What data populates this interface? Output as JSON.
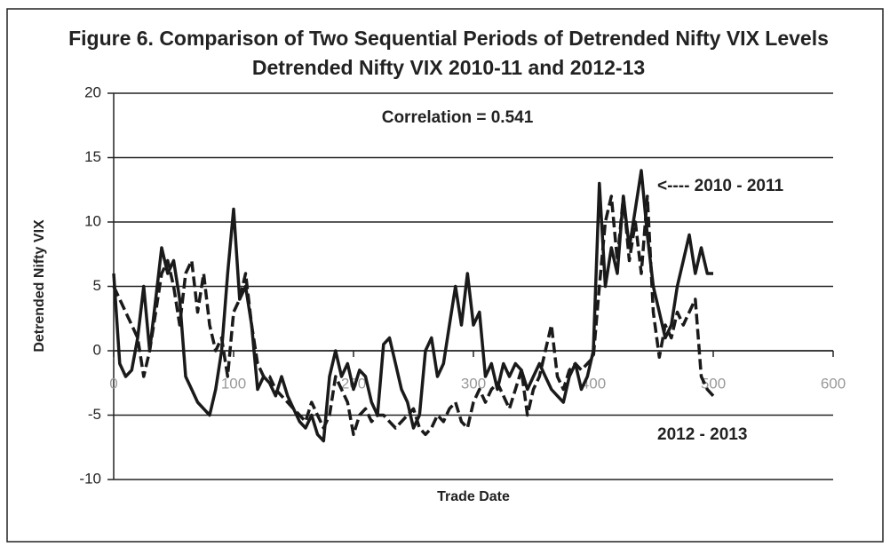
{
  "chart_data": {
    "type": "line",
    "title": "Figure 6. Comparison of Two Sequential Periods of Detrended Nifty VIX Levels",
    "subtitle": "Detrended Nifty VIX 2010-11 and 2012-13",
    "annotation": "Correlation = 0.541",
    "ylabel": "Detrended Nifty VIX",
    "xlabel": "Trade Date",
    "xlim": [
      0,
      600
    ],
    "xticks": [
      0,
      100,
      200,
      300,
      400,
      500,
      600
    ],
    "ylim": [
      -10,
      20
    ],
    "yticks": [
      -10,
      -5,
      0,
      5,
      10,
      15,
      20
    ],
    "grid": true,
    "x": [
      0,
      5,
      10,
      15,
      20,
      25,
      30,
      35,
      40,
      45,
      50,
      55,
      60,
      65,
      70,
      75,
      80,
      85,
      90,
      95,
      100,
      105,
      110,
      115,
      120,
      125,
      130,
      135,
      140,
      145,
      150,
      155,
      160,
      165,
      170,
      175,
      180,
      185,
      190,
      195,
      200,
      205,
      210,
      215,
      220,
      225,
      230,
      235,
      240,
      245,
      250,
      255,
      260,
      265,
      270,
      275,
      280,
      285,
      290,
      295,
      300,
      305,
      310,
      315,
      320,
      325,
      330,
      335,
      340,
      345,
      350,
      355,
      360,
      365,
      370,
      375,
      380,
      385,
      390,
      395,
      400,
      405,
      410,
      415,
      420,
      425,
      430,
      435,
      440,
      445,
      450,
      455,
      460,
      465,
      470,
      475,
      480,
      485,
      490,
      495,
      500
    ],
    "series": [
      {
        "name": "<---- 2010 - 2011",
        "color": "#1a1a1a",
        "dash": false,
        "values": [
          6,
          -1,
          -2,
          -1.5,
          1,
          5,
          0,
          4,
          8,
          6,
          7,
          4,
          -2,
          -3,
          -4,
          -4.5,
          -5,
          -3,
          0,
          6,
          11,
          4,
          5,
          2,
          -3,
          -2,
          -2.5,
          -3.5,
          -2,
          -3.5,
          -4.5,
          -5.5,
          -6,
          -5,
          -6.5,
          -7,
          -2,
          0,
          -2,
          -1,
          -3,
          -1.5,
          -2,
          -4,
          -5,
          0.5,
          1,
          -1,
          -3,
          -4,
          -6,
          -5,
          0,
          1,
          -2,
          -1,
          2,
          5,
          2,
          6,
          2,
          3,
          -2,
          -1,
          -3,
          -1,
          -2,
          -1,
          -1.5,
          -3,
          -2,
          -1,
          -2,
          -3,
          -3.5,
          -4,
          -2,
          -1,
          -3,
          -2,
          0,
          13,
          5,
          8,
          6,
          12,
          8,
          11,
          14,
          9,
          5,
          3,
          1,
          2,
          5,
          7,
          9,
          6,
          8,
          6,
          6
        ]
      },
      {
        "name": "2012 - 2013",
        "color": "#1a1a1a",
        "dash": true,
        "values": [
          5,
          4,
          3,
          2,
          1,
          -2,
          0,
          3,
          6,
          7,
          5,
          2,
          6,
          7,
          3,
          6,
          2,
          0,
          1,
          -2,
          3,
          4,
          6,
          2,
          -1,
          -2,
          -2,
          -3,
          -3.5,
          -4,
          -4.5,
          -5,
          -5.5,
          -4,
          -5,
          -6,
          -5,
          -2,
          -3,
          -4,
          -6.5,
          -5,
          -4.5,
          -5.5,
          -5,
          -5,
          -5.5,
          -6,
          -5.5,
          -5,
          -4.5,
          -6,
          -6.5,
          -6,
          -5,
          -5.5,
          -4.5,
          -4,
          -5.5,
          -6,
          -4,
          -3,
          -4,
          -3,
          -2.5,
          -3.5,
          -4.5,
          -3,
          -1.5,
          -5,
          -3,
          -2,
          0,
          2,
          -2,
          -3,
          -1.5,
          -1,
          -1.5,
          -1,
          -0.5,
          5,
          10,
          12,
          7,
          12,
          7,
          10,
          6,
          12,
          3,
          -0.5,
          2,
          1,
          3,
          2,
          3,
          4,
          -2,
          -3,
          -3.5
        ]
      }
    ]
  }
}
